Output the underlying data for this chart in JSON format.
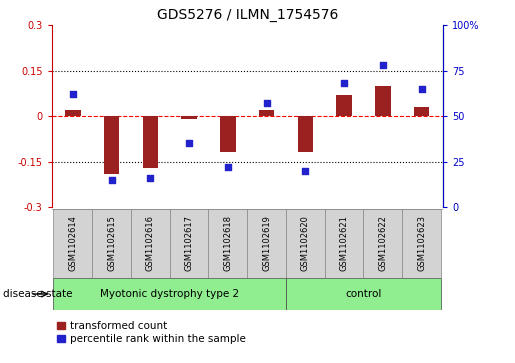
{
  "title": "GDS5276 / ILMN_1754576",
  "samples": [
    "GSM1102614",
    "GSM1102615",
    "GSM1102616",
    "GSM1102617",
    "GSM1102618",
    "GSM1102619",
    "GSM1102620",
    "GSM1102621",
    "GSM1102622",
    "GSM1102623"
  ],
  "transformed_count": [
    0.02,
    -0.19,
    -0.17,
    -0.01,
    -0.12,
    0.02,
    -0.12,
    0.07,
    0.1,
    0.03
  ],
  "percentile_rank": [
    62,
    15,
    16,
    35,
    22,
    57,
    20,
    68,
    78,
    65
  ],
  "ylim_left": [
    -0.3,
    0.3
  ],
  "ylim_right": [
    0,
    100
  ],
  "yticks_left": [
    -0.3,
    -0.15,
    0.0,
    0.15,
    0.3
  ],
  "yticks_right": [
    0,
    25,
    50,
    75,
    100
  ],
  "ytick_labels_left": [
    "-0.3",
    "-0.15",
    "0",
    "0.15",
    "0.3"
  ],
  "ytick_labels_right": [
    "0",
    "25",
    "50",
    "75",
    "100%"
  ],
  "hlines": [
    0.15,
    0.0,
    -0.15
  ],
  "hline_styles": [
    "dotted",
    "dashed",
    "dotted"
  ],
  "hline_colors": [
    "black",
    "red",
    "black"
  ],
  "groups": [
    {
      "label": "Myotonic dystrophy type 2",
      "start": 0,
      "end": 6,
      "color": "#90EE90"
    },
    {
      "label": "control",
      "start": 6,
      "end": 10,
      "color": "#90EE90"
    }
  ],
  "disease_state_label": "disease state",
  "bar_color": "#9B2020",
  "dot_color": "#2222CC",
  "bar_width": 0.4,
  "dot_size": 18,
  "legend_bar_label": "transformed count",
  "legend_dot_label": "percentile rank within the sample",
  "sample_box_color": "#D3D3D3",
  "left_axis_color": "#CC0000",
  "right_axis_color": "#0000CC"
}
